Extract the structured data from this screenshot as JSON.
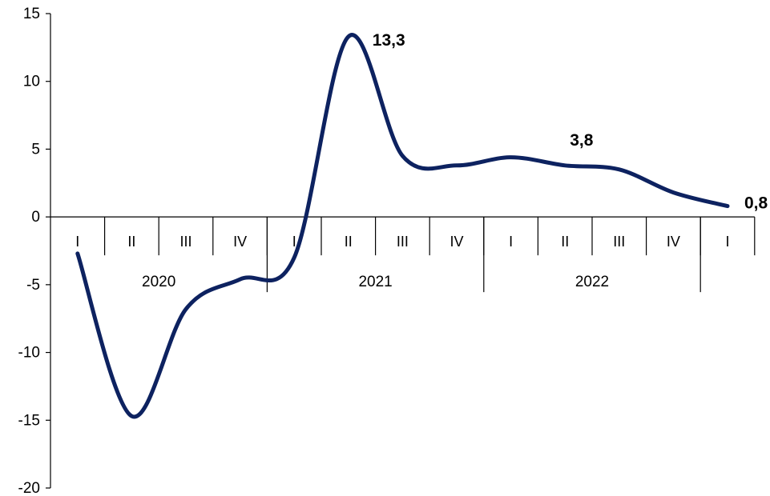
{
  "chart_data": {
    "type": "line",
    "title": "",
    "xlabel": "",
    "ylabel": "",
    "ylim": [
      -20,
      15
    ],
    "yticks": [
      15,
      10,
      5,
      0,
      -5,
      -10,
      -15,
      -20
    ],
    "categories": [
      "I",
      "II",
      "III",
      "IV",
      "I",
      "II",
      "III",
      "IV",
      "I",
      "II",
      "III",
      "IV",
      "I"
    ],
    "years": [
      {
        "label": "2020"
      },
      {
        "label": "2021"
      },
      {
        "label": "2022"
      }
    ],
    "series": [
      {
        "values": [
          -2.7,
          -14.7,
          -6.8,
          -4.6,
          -3.0,
          13.3,
          4.5,
          3.8,
          4.4,
          3.8,
          3.5,
          1.8,
          0.8
        ]
      }
    ],
    "data_labels": [
      {
        "index": 5,
        "text": "13,3"
      },
      {
        "index": 9,
        "text": "3,8"
      },
      {
        "index": 12,
        "text": "0,8"
      }
    ],
    "line_color": "#0d2260",
    "legend": "none",
    "grid": false
  }
}
